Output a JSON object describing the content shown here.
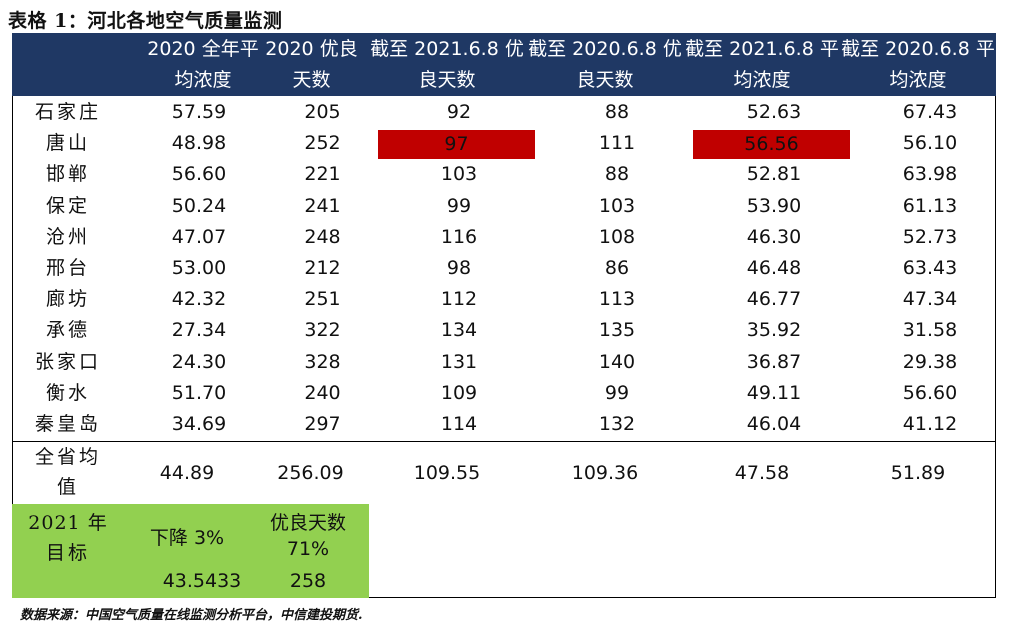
{
  "title": "表格 1：河北各地空气质量监测",
  "headers": [
    [
      "2020 全年平",
      "均浓度"
    ],
    [
      "2020 优良",
      "天数"
    ],
    [
      "截至 2021.6.8 优",
      "良天数"
    ],
    [
      "截至 2020.6.8 优",
      "良天数"
    ],
    [
      "截至 2021.6.8 平",
      "均浓度"
    ],
    [
      "截至 2020.6.8 平",
      "均浓度"
    ]
  ],
  "rows": [
    {
      "city": "石家庄",
      "v": [
        "57.59",
        "205",
        "92",
        "88",
        "52.63",
        "67.43"
      ]
    },
    {
      "city": "唐山",
      "v": [
        "48.98",
        "252",
        "97",
        "111",
        "56.56",
        "56.10"
      ]
    },
    {
      "city": "邯郸",
      "v": [
        "56.60",
        "221",
        "103",
        "88",
        "52.81",
        "63.98"
      ]
    },
    {
      "city": "保定",
      "v": [
        "50.24",
        "241",
        "99",
        "103",
        "53.90",
        "61.13"
      ]
    },
    {
      "city": "沧州",
      "v": [
        "47.07",
        "248",
        "116",
        "108",
        "46.30",
        "52.73"
      ]
    },
    {
      "city": "邢台",
      "v": [
        "53.00",
        "212",
        "98",
        "86",
        "46.48",
        "63.43"
      ]
    },
    {
      "city": "廊坊",
      "v": [
        "42.32",
        "251",
        "112",
        "113",
        "46.77",
        "47.34"
      ]
    },
    {
      "city": "承德",
      "v": [
        "27.34",
        "322",
        "134",
        "135",
        "35.92",
        "31.58"
      ]
    },
    {
      "city": "张家口",
      "v": [
        "24.30",
        "328",
        "131",
        "140",
        "36.87",
        "29.38"
      ]
    },
    {
      "city": "衡水",
      "v": [
        "51.70",
        "240",
        "109",
        "99",
        "49.11",
        "56.60"
      ]
    },
    {
      "city": "秦皇岛",
      "v": [
        "34.69",
        "297",
        "114",
        "132",
        "46.04",
        "41.12"
      ]
    }
  ],
  "average": {
    "label_line1": "全省均",
    "label_line2": "值",
    "v": [
      "44.89",
      "256.09",
      "109.55",
      "109.36",
      "47.58",
      "51.89"
    ]
  },
  "target": {
    "label_line1": "2021 年",
    "label_line2": "目标",
    "reduction": "下降 3%",
    "good_days_label": "优良天数",
    "good_days_pct": "71%",
    "conc_value": "43.5433",
    "days_value": "258"
  },
  "highlight_color": "#c00000",
  "header_color": "#1f3864",
  "target_color": "#92d050",
  "footnote": "数据来源：中国空气质量在线监测分析平台，中信建投期货."
}
